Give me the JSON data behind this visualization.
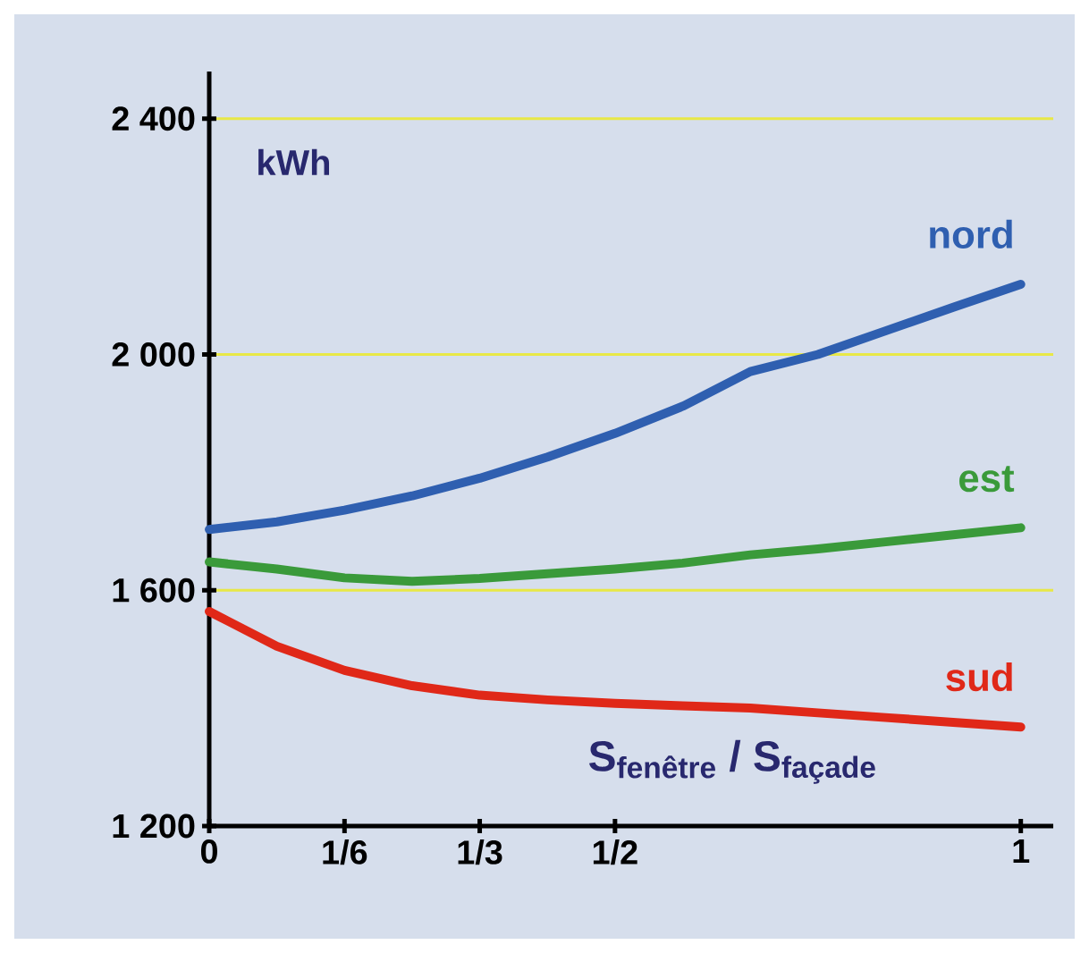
{
  "chart_data": {
    "type": "line",
    "xlabel": "S$_{fenêtre}$ / S$_{façade}$",
    "ylabel": "kWh",
    "x": [
      0,
      0.0833,
      0.1667,
      0.25,
      0.3333,
      0.4167,
      0.5,
      0.5833,
      0.6667,
      0.75,
      0.8333,
      0.9167,
      1
    ],
    "xlim": [
      0,
      1.04
    ],
    "ylim": [
      1200,
      2480
    ],
    "xticks": [
      0,
      {
        "value": 0.1667,
        "label": "1/6"
      },
      {
        "value": 0.3333,
        "label": "1/3"
      },
      {
        "value": 0.5,
        "label": "1/2"
      },
      1
    ],
    "yticks": [
      {
        "value": 1200,
        "label": "1 200"
      },
      {
        "value": 1600,
        "label": "1 600"
      },
      {
        "value": 2000,
        "label": "2 000"
      },
      {
        "value": 2400,
        "label": "2 400"
      }
    ],
    "grid": "y",
    "legend": false,
    "marker": "none",
    "line_style": "solid",
    "series": [
      {
        "name": "nord",
        "color": "#2f5fb0",
        "values": [
          1703,
          1716,
          1736,
          1760,
          1790,
          1826,
          1866,
          1912,
          1971,
          2000,
          2040,
          2080,
          2119
        ]
      },
      {
        "name": "est",
        "color": "#3a9a3a",
        "values": [
          1648,
          1636,
          1621,
          1615,
          1620,
          1628,
          1636,
          1646,
          1660,
          1670,
          1682,
          1694,
          1706
        ]
      },
      {
        "name": "sud",
        "color": "#e02818",
        "values": [
          1564,
          1505,
          1464,
          1438,
          1422,
          1414,
          1408,
          1404,
          1400,
          1392,
          1384,
          1376,
          1368
        ]
      }
    ]
  }
}
